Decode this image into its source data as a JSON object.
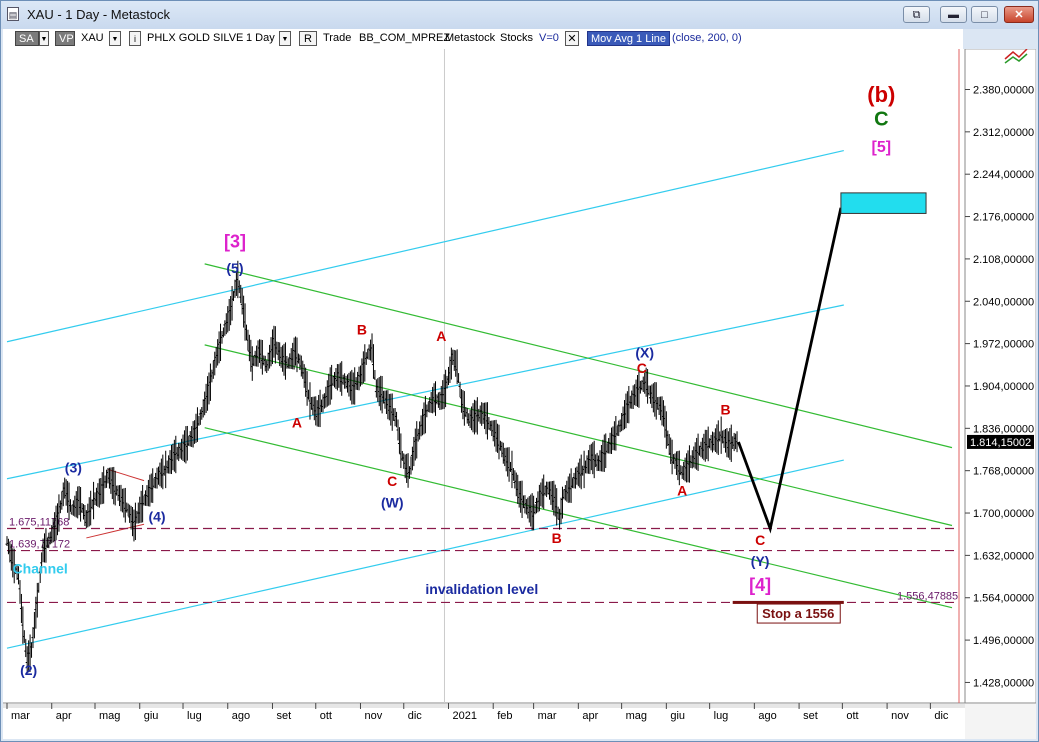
{
  "window": {
    "title": "XAU - 1 Day - Metastock",
    "buttons": {
      "restore": "⧉",
      "minimize": "▬",
      "maximize": "□",
      "close": "✕"
    }
  },
  "toolbar": {
    "sa": "SA",
    "vp": "VP",
    "symbol": "XAU",
    "symbol_name": "PHLX GOLD SILVE",
    "period": "1 Day",
    "r_btn": "R",
    "trade": "Trade",
    "account": "BB_COM_MPREZ",
    "source": "Metastock",
    "asset_type": "Stocks",
    "v_value": "V=0",
    "close_x": "✕",
    "indicator": "Mov Avg 1 Line",
    "indicator_params": "(close,  200,  0)"
  },
  "colors": {
    "price": "#000000",
    "channel_cyan": "#33ccee",
    "channel_green": "#33bb33",
    "wave_red": "#cc0000",
    "wave_blue": "#1a2aa0",
    "wave_magenta": "#dd22cc",
    "wave_green": "#117711",
    "target_box": "#22ddee",
    "level_line": "#8a1a4a"
  },
  "chart_data": {
    "type": "candlestick",
    "symbol": "XAU",
    "ylim": [
      1395,
      2445
    ],
    "y_ticks": [
      "2.380,00000",
      "2.312,00000",
      "2.244,00000",
      "2.176,00000",
      "2.108,00000",
      "2.040,00000",
      "1.972,00000",
      "1.904,00000",
      "1.836,00000",
      "1.768,00000",
      "1.700,00000",
      "1.632,00000",
      "1.564,00000",
      "1.496,00000",
      "1.428,00000"
    ],
    "y_tick_values": [
      2380,
      2312,
      2244,
      2176,
      2108,
      2040,
      1972,
      1904,
      1836,
      1768,
      1700,
      1632,
      1564,
      1496,
      1428
    ],
    "x_ticks": [
      {
        "label": "mar",
        "t": 0
      },
      {
        "label": "apr",
        "t": 31
      },
      {
        "label": "mag",
        "t": 61
      },
      {
        "label": "giu",
        "t": 92
      },
      {
        "label": "lug",
        "t": 122
      },
      {
        "label": "ago",
        "t": 153
      },
      {
        "label": "set",
        "t": 184
      },
      {
        "label": "ott",
        "t": 214
      },
      {
        "label": "nov",
        "t": 245
      },
      {
        "label": "dic",
        "t": 275
      },
      {
        "label": "2021",
        "t": 306
      },
      {
        "label": "feb",
        "t": 337
      },
      {
        "label": "mar",
        "t": 365
      },
      {
        "label": "apr",
        "t": 396
      },
      {
        "label": "mag",
        "t": 426
      },
      {
        "label": "giu",
        "t": 457
      },
      {
        "label": "lug",
        "t": 487
      },
      {
        "label": "ago",
        "t": 518
      },
      {
        "label": "set",
        "t": 549
      },
      {
        "label": "ott",
        "t": 579
      },
      {
        "label": "nov",
        "t": 610
      },
      {
        "label": "dic",
        "t": 640
      }
    ],
    "last_price": "1.814,15002",
    "last_value": 1814.15,
    "price_path": [
      [
        0,
        1655
      ],
      [
        4,
        1620
      ],
      [
        8,
        1600
      ],
      [
        11,
        1520
      ],
      [
        14,
        1465
      ],
      [
        17,
        1480
      ],
      [
        21,
        1560
      ],
      [
        25,
        1640
      ],
      [
        30,
        1660
      ],
      [
        35,
        1690
      ],
      [
        40,
        1740
      ],
      [
        45,
        1705
      ],
      [
        50,
        1720
      ],
      [
        55,
        1690
      ],
      [
        60,
        1720
      ],
      [
        65,
        1735
      ],
      [
        70,
        1760
      ],
      [
        75,
        1740
      ],
      [
        80,
        1720
      ],
      [
        84,
        1705
      ],
      [
        88,
        1680
      ],
      [
        91,
        1700
      ],
      [
        95,
        1720
      ],
      [
        100,
        1740
      ],
      [
        105,
        1760
      ],
      [
        110,
        1770
      ],
      [
        115,
        1790
      ],
      [
        120,
        1800
      ],
      [
        125,
        1812
      ],
      [
        130,
        1830
      ],
      [
        135,
        1860
      ],
      [
        140,
        1900
      ],
      [
        145,
        1950
      ],
      [
        150,
        1990
      ],
      [
        155,
        2025
      ],
      [
        158,
        2060
      ],
      [
        160,
        2075
      ],
      [
        163,
        2040
      ],
      [
        166,
        1990
      ],
      [
        170,
        1940
      ],
      [
        175,
        1960
      ],
      [
        180,
        1935
      ],
      [
        185,
        1975
      ],
      [
        190,
        1950
      ],
      [
        195,
        1940
      ],
      [
        200,
        1960
      ],
      [
        205,
        1930
      ],
      [
        210,
        1880
      ],
      [
        215,
        1860
      ],
      [
        220,
        1880
      ],
      [
        225,
        1910
      ],
      [
        230,
        1920
      ],
      [
        235,
        1910
      ],
      [
        240,
        1900
      ],
      [
        245,
        1920
      ],
      [
        250,
        1955
      ],
      [
        253,
        1965
      ],
      [
        256,
        1900
      ],
      [
        260,
        1890
      ],
      [
        265,
        1870
      ],
      [
        270,
        1850
      ],
      [
        273,
        1800
      ],
      [
        276,
        1775
      ],
      [
        279,
        1765
      ],
      [
        283,
        1810
      ],
      [
        287,
        1840
      ],
      [
        292,
        1870
      ],
      [
        296,
        1885
      ],
      [
        300,
        1880
      ],
      [
        304,
        1900
      ],
      [
        307,
        1930
      ],
      [
        309,
        1950
      ],
      [
        312,
        1935
      ],
      [
        315,
        1880
      ],
      [
        320,
        1850
      ],
      [
        325,
        1855
      ],
      [
        330,
        1860
      ],
      [
        335,
        1840
      ],
      [
        340,
        1820
      ],
      [
        345,
        1790
      ],
      [
        350,
        1770
      ],
      [
        355,
        1730
      ],
      [
        360,
        1710
      ],
      [
        365,
        1700
      ],
      [
        370,
        1730
      ],
      [
        375,
        1740
      ],
      [
        380,
        1720
      ],
      [
        383,
        1690
      ],
      [
        386,
        1730
      ],
      [
        390,
        1740
      ],
      [
        395,
        1760
      ],
      [
        400,
        1770
      ],
      [
        405,
        1790
      ],
      [
        410,
        1780
      ],
      [
        415,
        1800
      ],
      [
        420,
        1820
      ],
      [
        425,
        1840
      ],
      [
        430,
        1870
      ],
      [
        435,
        1890
      ],
      [
        440,
        1905
      ],
      [
        443,
        1910
      ],
      [
        446,
        1890
      ],
      [
        450,
        1880
      ],
      [
        455,
        1860
      ],
      [
        458,
        1820
      ],
      [
        461,
        1790
      ],
      [
        464,
        1780
      ],
      [
        468,
        1765
      ],
      [
        472,
        1775
      ],
      [
        476,
        1790
      ],
      [
        480,
        1800
      ],
      [
        485,
        1810
      ],
      [
        490,
        1815
      ],
      [
        495,
        1825
      ],
      [
        500,
        1810
      ],
      [
        505,
        1815
      ],
      [
        507,
        1814
      ]
    ],
    "projection": [
      [
        507,
        1814
      ],
      [
        529,
        1675
      ],
      [
        578,
        2190
      ]
    ],
    "channels_cyan": [
      {
        "from": [
          0,
          1975
        ],
        "to": [
          580,
          2282
        ]
      },
      {
        "from": [
          0,
          1755
        ],
        "to": [
          580,
          2034
        ]
      },
      {
        "from": [
          0,
          1483
        ],
        "to": [
          580,
          1785
        ]
      }
    ],
    "channels_green": [
      {
        "from": [
          137,
          2100
        ],
        "to": [
          655,
          1805
        ]
      },
      {
        "from": [
          137,
          1970
        ],
        "to": [
          655,
          1680
        ]
      },
      {
        "from": [
          137,
          1837
        ],
        "to": [
          655,
          1548
        ]
      }
    ],
    "small_channel": [
      {
        "from": [
          55,
          1660
        ],
        "to": [
          95,
          1682
        ]
      },
      {
        "from": [
          70,
          1770
        ],
        "to": [
          95,
          1752
        ]
      }
    ],
    "hlines": [
      {
        "label": "1.675,11768",
        "y": 1675.12,
        "value_label": "1.675,11768"
      },
      {
        "label": "1.639,77172",
        "y": 1639.77,
        "value_label": "1.639,77172"
      },
      {
        "label": "1.556,47885",
        "y": 1556.48,
        "value_label": "1.556,47885"
      }
    ],
    "stop_bar": {
      "t0": 503,
      "t1": 580,
      "y": 1556.48
    },
    "target_box": {
      "t0": 578,
      "t1": 637,
      "y0": 2181,
      "y1": 2214
    },
    "annotations": [
      {
        "text": "(b)",
        "t": 606,
        "y": 2360,
        "color": "red",
        "size": 22
      },
      {
        "text": "C",
        "t": 606,
        "y": 2322,
        "color": "green",
        "size": 20
      },
      {
        "text": "[5]",
        "t": 606,
        "y": 2280,
        "color": "magenta",
        "size": 16
      },
      {
        "text": "[3]",
        "t": 158,
        "y": 2126,
        "color": "magenta",
        "size": 18
      },
      {
        "text": "(5)",
        "t": 158,
        "y": 2085,
        "color": "blue",
        "size": 14
      },
      {
        "text": "B",
        "t": 246,
        "y": 1987,
        "color": "red",
        "size": 14
      },
      {
        "text": "A",
        "t": 301,
        "y": 1976,
        "color": "red",
        "size": 14
      },
      {
        "text": "A",
        "t": 201,
        "y": 1837,
        "color": "red",
        "size": 14
      },
      {
        "text": "C",
        "t": 267,
        "y": 1743,
        "color": "red",
        "size": 14
      },
      {
        "text": "(W)",
        "t": 267,
        "y": 1709,
        "color": "blue",
        "size": 14
      },
      {
        "text": "(X)",
        "t": 442,
        "y": 1950,
        "color": "blue",
        "size": 14
      },
      {
        "text": "C",
        "t": 440,
        "y": 1925,
        "color": "red",
        "size": 14
      },
      {
        "text": "B",
        "t": 498,
        "y": 1858,
        "color": "red",
        "size": 14
      },
      {
        "text": "A",
        "t": 468,
        "y": 1728,
        "color": "red",
        "size": 14
      },
      {
        "text": "B",
        "t": 381,
        "y": 1652,
        "color": "red",
        "size": 14
      },
      {
        "text": "C",
        "t": 522,
        "y": 1649,
        "color": "red",
        "size": 14
      },
      {
        "text": "(Y)",
        "t": 522,
        "y": 1615,
        "color": "blue",
        "size": 14
      },
      {
        "text": "[4]",
        "t": 522,
        "y": 1575,
        "color": "magenta",
        "size": 18
      },
      {
        "text": "(3)",
        "t": 46,
        "y": 1765,
        "color": "blue",
        "size": 14
      },
      {
        "text": "(4)",
        "t": 104,
        "y": 1686,
        "color": "blue",
        "size": 14
      },
      {
        "text": "(2)",
        "t": 15,
        "y": 1440,
        "color": "blue",
        "size": 14
      },
      {
        "text": "Channel",
        "t": 23,
        "y": 1603,
        "color": "cyan",
        "size": 14
      }
    ],
    "invalidation_label": "invalidation level",
    "stop_label": "Stop a 1556"
  }
}
